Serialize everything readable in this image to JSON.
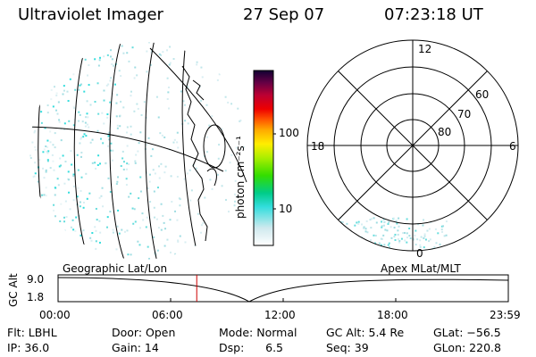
{
  "header": {
    "instrument": "Ultraviolet Imager",
    "date": "27 Sep 07",
    "time": "07:23:18 UT"
  },
  "colorbar": {
    "unit_label": "photon cm⁻²s⁻¹",
    "ticks": [
      "100",
      "10"
    ]
  },
  "polar_plot": {
    "mlt_labels": {
      "top": "12",
      "left": "18",
      "right": "6",
      "bottom": "0"
    },
    "lat_labels": [
      "60",
      "70",
      "80"
    ]
  },
  "timeline": {
    "left_title": "Geographic Lat/Lon",
    "right_title": "Apex MLat/MLT",
    "axis_label": "GC Alt",
    "y_ticks": [
      "9.0",
      "1.8"
    ],
    "x_ticks": [
      "00:00",
      "06:00",
      "12:00",
      "18:00",
      "23:59"
    ],
    "current_time_fraction": 0.308
  },
  "info": {
    "row1": {
      "filter": "Flt: LBHL",
      "door": "Door: Open",
      "mode": "Mode: Normal",
      "gc_alt": "GC Alt: 5.4 Re",
      "glat": "GLat: −56.5"
    },
    "row2": {
      "ip": "IP: 36.0",
      "gain": "Gain: 14",
      "dsp": "Dsp:      6.5",
      "seq": "Seq: 39",
      "glon": "GLon: 220.8"
    }
  },
  "colors": {
    "cursor": "#cc0000",
    "aurora": "#33dddd"
  }
}
